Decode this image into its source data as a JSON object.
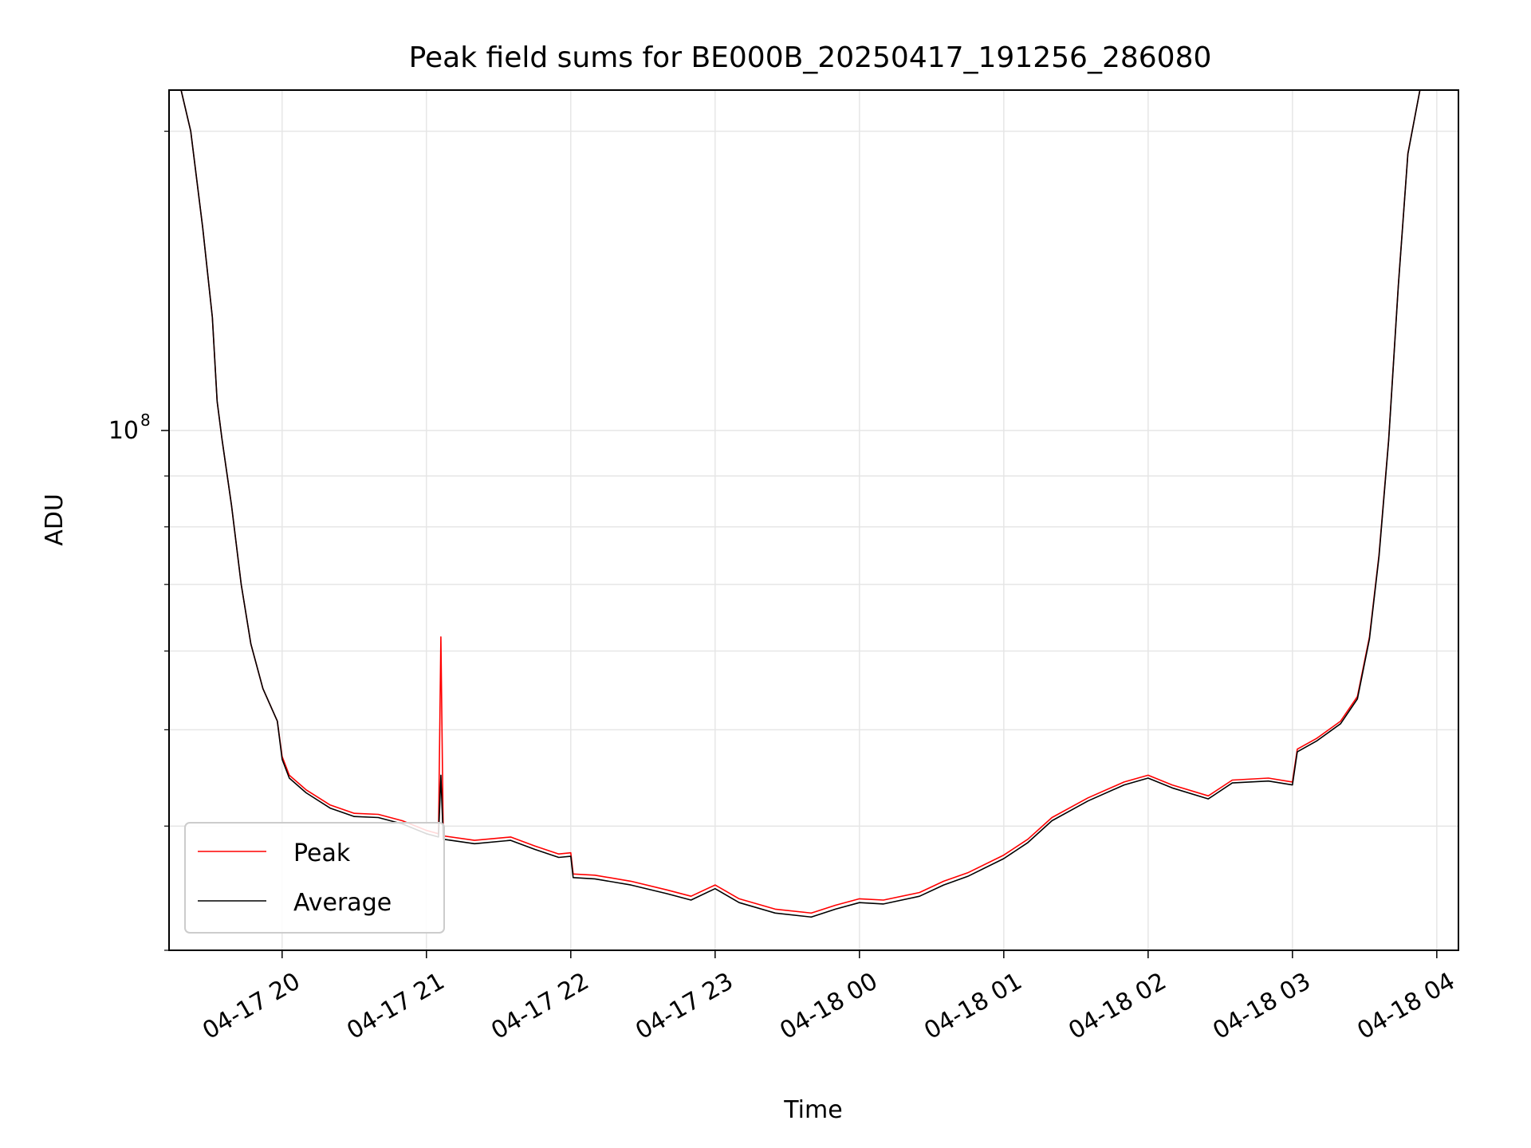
{
  "chart_data": {
    "type": "line",
    "title": "Peak field sums for BE000B_20250417_191256_286080",
    "xlabel": "Time",
    "ylabel": "ADU",
    "y_scale": "log",
    "ylim": [
      30000000,
      220000000
    ],
    "xlim": [
      "2025-04-17 19:13",
      "2025-04-18 04:09"
    ],
    "x_ticks": [
      "2025-04-17 20:00",
      "2025-04-17 21:00",
      "2025-04-17 22:00",
      "2025-04-17 23:00",
      "2025-04-18 00:00",
      "2025-04-18 01:00",
      "2025-04-18 02:00",
      "2025-04-18 03:00",
      "2025-04-18 04:00"
    ],
    "x_tick_labels": [
      "04-17 20",
      "04-17 21",
      "04-17 22",
      "04-17 23",
      "04-18 00",
      "04-18 01",
      "04-18 02",
      "04-18 03",
      "04-18 04"
    ],
    "y_tick_label": {
      "value": 100000000,
      "base": "10",
      "exponent": "8"
    },
    "grid": true,
    "legend_position": "lower-left",
    "series": [
      {
        "name": "Peak",
        "color": "#ff0000",
        "points": [
          [
            "2025-04-17 19:18",
            220000000
          ],
          [
            "2025-04-17 19:22",
            200000000
          ],
          [
            "2025-04-17 19:27",
            160000000
          ],
          [
            "2025-04-17 19:31",
            130000000
          ],
          [
            "2025-04-17 19:33",
            107000000
          ],
          [
            "2025-04-17 19:35",
            98000000
          ],
          [
            "2025-04-17 19:39",
            84000000
          ],
          [
            "2025-04-17 19:43",
            70000000
          ],
          [
            "2025-04-17 19:47",
            61000000
          ],
          [
            "2025-04-17 19:52",
            55000000
          ],
          [
            "2025-04-17 19:58",
            51000000
          ],
          [
            "2025-04-17 20:00",
            47000000
          ],
          [
            "2025-04-17 20:03",
            45000000
          ],
          [
            "2025-04-17 20:10",
            43500000
          ],
          [
            "2025-04-17 20:20",
            42000000
          ],
          [
            "2025-04-17 20:30",
            41200000
          ],
          [
            "2025-04-17 20:40",
            41100000
          ],
          [
            "2025-04-17 20:50",
            40500000
          ],
          [
            "2025-04-17 21:00",
            39600000
          ],
          [
            "2025-04-17 21:05",
            39300000
          ],
          [
            "2025-04-17 21:06",
            62000000
          ],
          [
            "2025-04-17 21:07",
            39100000
          ],
          [
            "2025-04-17 21:20",
            38700000
          ],
          [
            "2025-04-17 21:35",
            39000000
          ],
          [
            "2025-04-17 21:45",
            38200000
          ],
          [
            "2025-04-17 21:55",
            37500000
          ],
          [
            "2025-04-17 22:00",
            37600000
          ],
          [
            "2025-04-17 22:01",
            35800000
          ],
          [
            "2025-04-17 22:10",
            35700000
          ],
          [
            "2025-04-17 22:25",
            35200000
          ],
          [
            "2025-04-17 22:40",
            34500000
          ],
          [
            "2025-04-17 22:50",
            34000000
          ],
          [
            "2025-04-17 23:00",
            34900000
          ],
          [
            "2025-04-17 23:10",
            33800000
          ],
          [
            "2025-04-17 23:25",
            33000000
          ],
          [
            "2025-04-17 23:40",
            32700000
          ],
          [
            "2025-04-17 23:50",
            33300000
          ],
          [
            "2025-04-18 00:00",
            33800000
          ],
          [
            "2025-04-18 00:10",
            33700000
          ],
          [
            "2025-04-18 00:25",
            34300000
          ],
          [
            "2025-04-18 00:35",
            35200000
          ],
          [
            "2025-04-18 00:45",
            35900000
          ],
          [
            "2025-04-18 01:00",
            37400000
          ],
          [
            "2025-04-18 01:10",
            38800000
          ],
          [
            "2025-04-18 01:20",
            40800000
          ],
          [
            "2025-04-18 01:35",
            42700000
          ],
          [
            "2025-04-18 01:50",
            44300000
          ],
          [
            "2025-04-18 02:00",
            45000000
          ],
          [
            "2025-04-18 02:10",
            44000000
          ],
          [
            "2025-04-18 02:25",
            42900000
          ],
          [
            "2025-04-18 02:35",
            44500000
          ],
          [
            "2025-04-18 02:50",
            44700000
          ],
          [
            "2025-04-18 03:00",
            44300000
          ],
          [
            "2025-04-18 03:02",
            47800000
          ],
          [
            "2025-04-18 03:10",
            49000000
          ],
          [
            "2025-04-18 03:20",
            51000000
          ],
          [
            "2025-04-18 03:27",
            54000000
          ],
          [
            "2025-04-18 03:32",
            62000000
          ],
          [
            "2025-04-18 03:36",
            75000000
          ],
          [
            "2025-04-18 03:40",
            98000000
          ],
          [
            "2025-04-18 03:44",
            140000000
          ],
          [
            "2025-04-18 03:48",
            190000000
          ],
          [
            "2025-04-18 03:53",
            220000000
          ],
          [
            "2025-04-18 04:09",
            220000000
          ]
        ]
      },
      {
        "name": "Average",
        "color": "#000000",
        "points": [
          [
            "2025-04-17 19:18",
            220000000
          ],
          [
            "2025-04-17 19:22",
            200000000
          ],
          [
            "2025-04-17 19:27",
            160000000
          ],
          [
            "2025-04-17 19:31",
            130000000
          ],
          [
            "2025-04-17 19:33",
            107000000
          ],
          [
            "2025-04-17 19:35",
            98000000
          ],
          [
            "2025-04-17 19:39",
            84000000
          ],
          [
            "2025-04-17 19:43",
            70000000
          ],
          [
            "2025-04-17 19:47",
            61000000
          ],
          [
            "2025-04-17 19:52",
            55000000
          ],
          [
            "2025-04-17 19:58",
            51000000
          ],
          [
            "2025-04-17 20:00",
            46700000
          ],
          [
            "2025-04-17 20:03",
            44700000
          ],
          [
            "2025-04-17 20:10",
            43200000
          ],
          [
            "2025-04-17 20:20",
            41700000
          ],
          [
            "2025-04-17 20:30",
            40900000
          ],
          [
            "2025-04-17 20:40",
            40800000
          ],
          [
            "2025-04-17 20:50",
            40200000
          ],
          [
            "2025-04-17 21:00",
            39300000
          ],
          [
            "2025-04-17 21:05",
            39000000
          ],
          [
            "2025-04-17 21:06",
            45000000
          ],
          [
            "2025-04-17 21:07",
            38800000
          ],
          [
            "2025-04-17 21:20",
            38400000
          ],
          [
            "2025-04-17 21:35",
            38700000
          ],
          [
            "2025-04-17 21:45",
            37900000
          ],
          [
            "2025-04-17 21:55",
            37200000
          ],
          [
            "2025-04-17 22:00",
            37300000
          ],
          [
            "2025-04-17 22:01",
            35500000
          ],
          [
            "2025-04-17 22:10",
            35400000
          ],
          [
            "2025-04-17 22:25",
            34900000
          ],
          [
            "2025-04-17 22:40",
            34200000
          ],
          [
            "2025-04-17 22:50",
            33700000
          ],
          [
            "2025-04-17 23:00",
            34600000
          ],
          [
            "2025-04-17 23:10",
            33500000
          ],
          [
            "2025-04-17 23:25",
            32700000
          ],
          [
            "2025-04-17 23:40",
            32400000
          ],
          [
            "2025-04-17 23:50",
            33000000
          ],
          [
            "2025-04-18 00:00",
            33500000
          ],
          [
            "2025-04-18 00:10",
            33400000
          ],
          [
            "2025-04-18 00:25",
            34000000
          ],
          [
            "2025-04-18 00:35",
            34900000
          ],
          [
            "2025-04-18 00:45",
            35600000
          ],
          [
            "2025-04-18 01:00",
            37100000
          ],
          [
            "2025-04-18 01:10",
            38500000
          ],
          [
            "2025-04-18 01:20",
            40500000
          ],
          [
            "2025-04-18 01:35",
            42400000
          ],
          [
            "2025-04-18 01:50",
            44000000
          ],
          [
            "2025-04-18 02:00",
            44700000
          ],
          [
            "2025-04-18 02:10",
            43700000
          ],
          [
            "2025-04-18 02:25",
            42600000
          ],
          [
            "2025-04-18 02:35",
            44200000
          ],
          [
            "2025-04-18 02:50",
            44400000
          ],
          [
            "2025-04-18 03:00",
            44000000
          ],
          [
            "2025-04-18 03:02",
            47500000
          ],
          [
            "2025-04-18 03:10",
            48700000
          ],
          [
            "2025-04-18 03:20",
            50700000
          ],
          [
            "2025-04-18 03:27",
            53700000
          ],
          [
            "2025-04-18 03:32",
            61700000
          ],
          [
            "2025-04-18 03:36",
            74700000
          ],
          [
            "2025-04-18 03:40",
            97700000
          ],
          [
            "2025-04-18 03:44",
            139700000
          ],
          [
            "2025-04-18 03:48",
            189700000
          ],
          [
            "2025-04-18 03:53",
            220000000
          ],
          [
            "2025-04-18 04:09",
            220000000
          ]
        ]
      }
    ]
  }
}
